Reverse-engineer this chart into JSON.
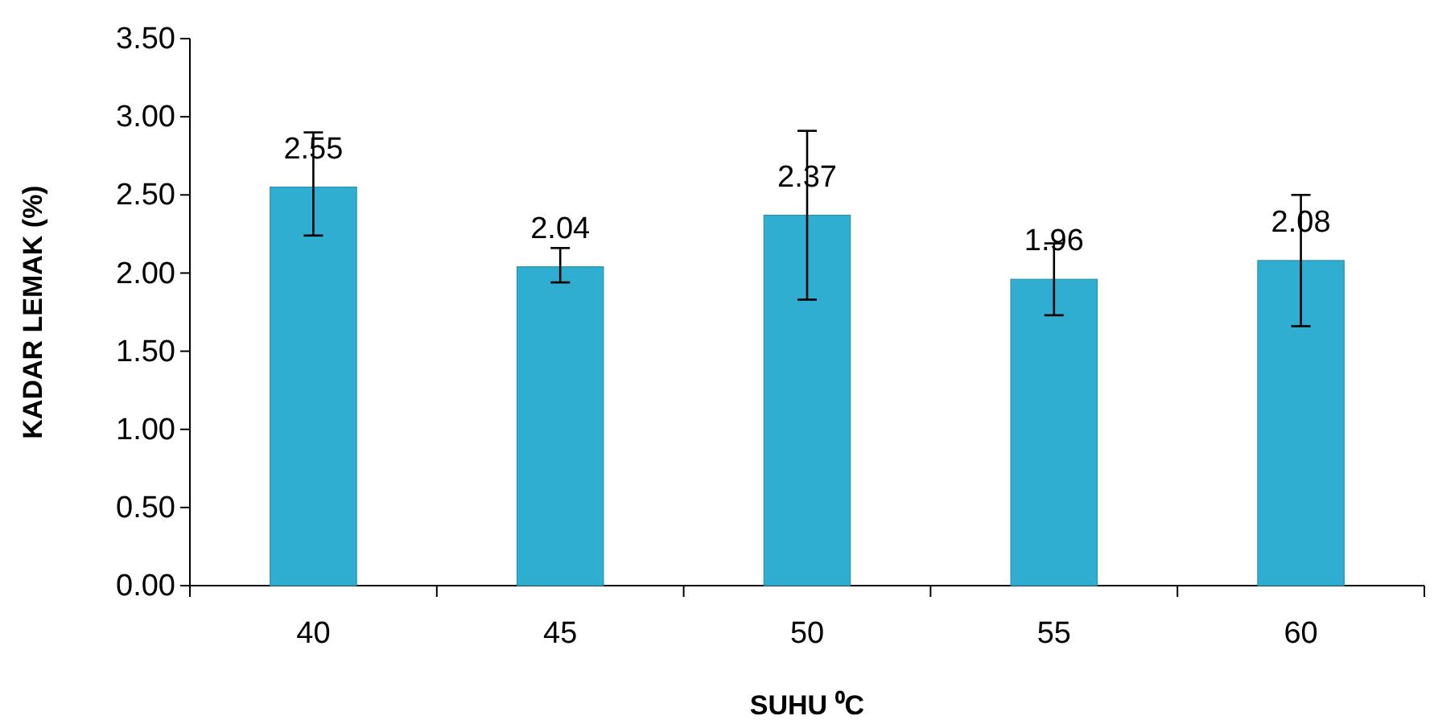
{
  "chart_data": {
    "type": "bar",
    "xlabel": "SUHU ⁰C",
    "ylabel": "KADAR LEMAK (%)",
    "categories": [
      "40",
      "45",
      "50",
      "55",
      "60"
    ],
    "values": [
      2.55,
      2.04,
      2.37,
      1.96,
      2.08
    ],
    "errors": [
      [
        2.24,
        2.9
      ],
      [
        1.94,
        2.16
      ],
      [
        1.83,
        2.91
      ],
      [
        1.73,
        2.19
      ],
      [
        1.66,
        2.5
      ]
    ],
    "color": "#30aed1",
    "data_labels": true,
    "grid": false,
    "ylim": [
      0,
      3.5
    ],
    "yticks": [
      {
        "value": 0,
        "label": "0.00"
      },
      {
        "value": 0.5,
        "label": "0.50"
      },
      {
        "value": 1,
        "label": "1.00"
      },
      {
        "value": 1.5,
        "label": "1.50"
      },
      {
        "value": 2,
        "label": "2.00"
      },
      {
        "value": 2.5,
        "label": "2.50"
      },
      {
        "value": 3,
        "label": "3.00"
      },
      {
        "value": 3.5,
        "label": "3.50"
      }
    ]
  }
}
